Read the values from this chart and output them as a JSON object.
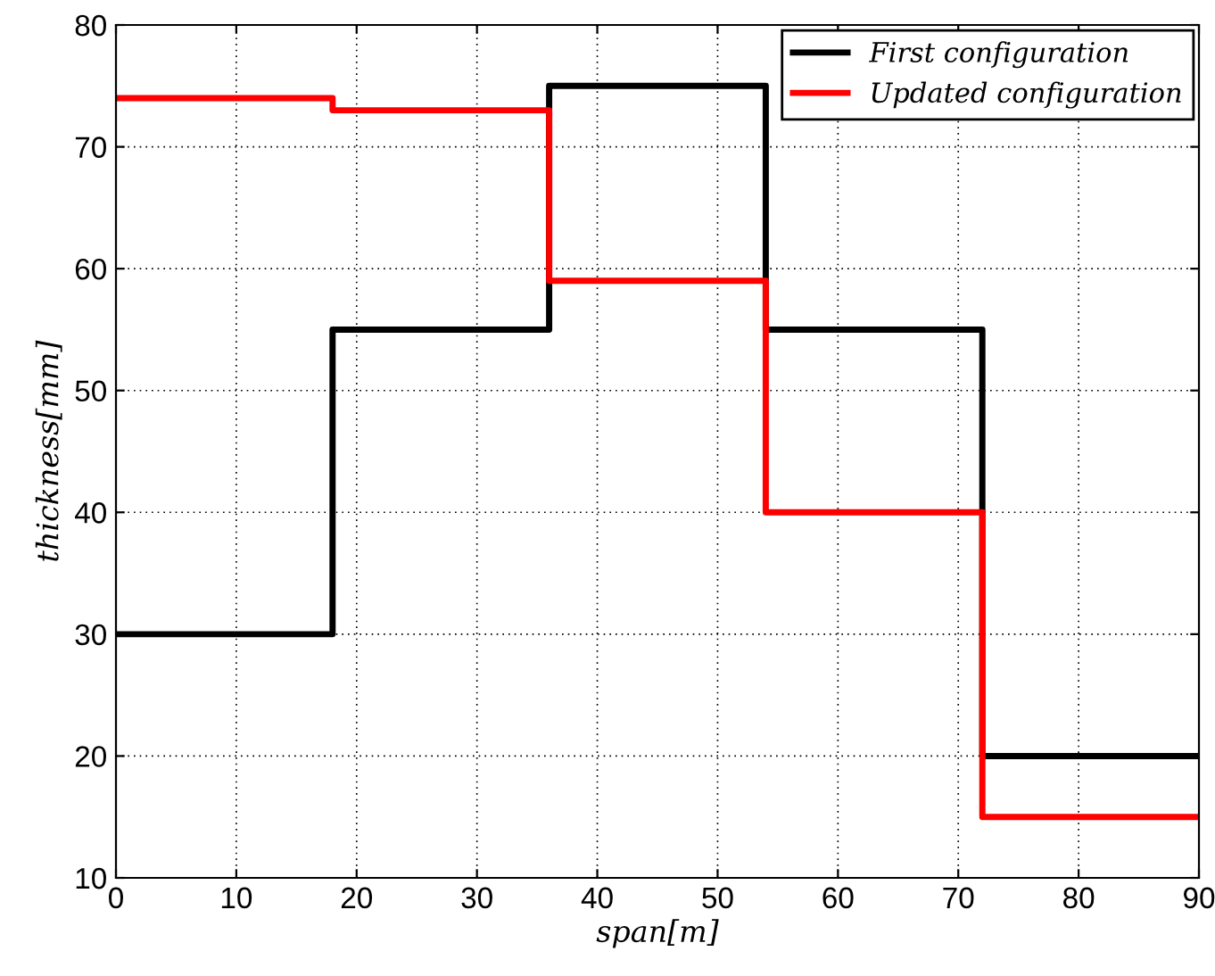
{
  "chart_data": {
    "type": "step",
    "xlabel": "span[m]",
    "ylabel": "thickness[mm]",
    "x": [
      0,
      18,
      36,
      54,
      72,
      90
    ],
    "series": [
      {
        "name": "First configuration",
        "color": "#000000",
        "values": [
          30,
          55,
          75,
          55,
          20,
          20
        ]
      },
      {
        "name": "Updated configuration",
        "color": "#ff0000",
        "values": [
          74,
          73,
          59,
          40,
          15,
          15
        ]
      }
    ],
    "xlim": [
      0,
      90
    ],
    "xticks": [
      0,
      10,
      20,
      30,
      40,
      50,
      60,
      70,
      80,
      90
    ],
    "ylim": [
      10,
      80
    ],
    "yticks": [
      10,
      20,
      30,
      40,
      50,
      60,
      70,
      80
    ],
    "grid": true,
    "legend": "top right",
    "line_style": "solid",
    "marker": "none"
  }
}
